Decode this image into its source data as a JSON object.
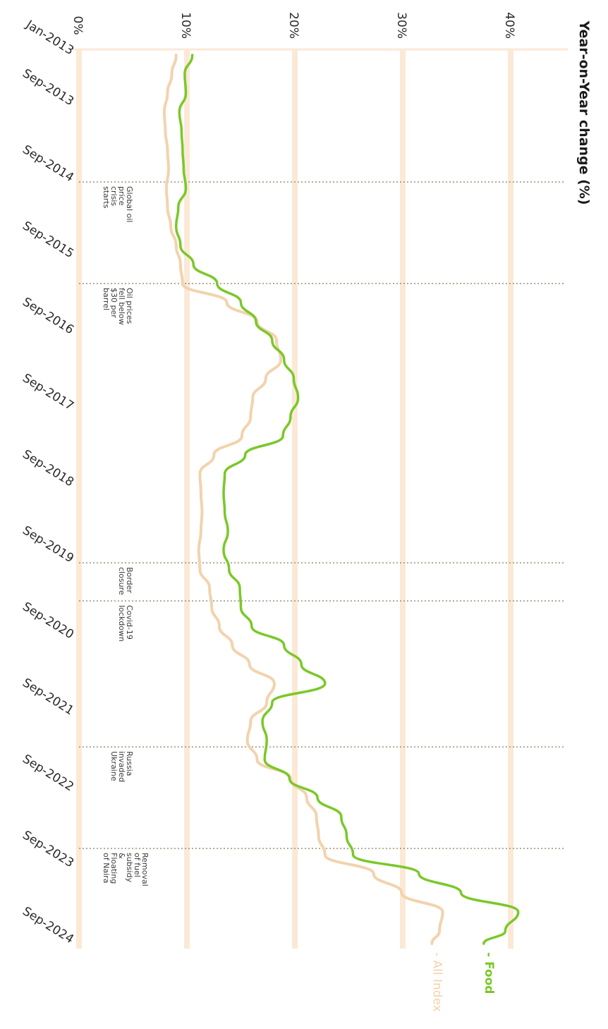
{
  "chart_data": {
    "type": "line",
    "title": "Year-on-Year change (%)",
    "ylabel": "Year-on-Year change (%)",
    "ylim": [
      0,
      42
    ],
    "y_ticks": [
      "0%",
      "10%",
      "20%",
      "30%",
      "40%"
    ],
    "x_ticks": [
      "Jan-2013",
      "Sep-2013",
      "Sep-2014",
      "Sep-2015",
      "Sep-2016",
      "Sep-2017",
      "Sep-2018",
      "Sep-2019",
      "Sep-2020",
      "Sep-2021",
      "Sep-2022",
      "Sep-2023",
      "Sep-2024"
    ],
    "colors": {
      "food": "#7ac828",
      "all": "#f2d3ad",
      "grid": "#fbe9d6",
      "event": "#8a7a5a"
    },
    "series": [
      {
        "name": "Food",
        "dates": [
          "2013-01",
          "2013-04",
          "2013-07",
          "2013-10",
          "2014-01",
          "2014-04",
          "2014-07",
          "2014-10",
          "2015-01",
          "2015-04",
          "2015-07",
          "2015-10",
          "2016-01",
          "2016-04",
          "2016-07",
          "2016-10",
          "2017-01",
          "2017-04",
          "2017-07",
          "2017-10",
          "2018-01",
          "2018-04",
          "2018-07",
          "2018-10",
          "2019-01",
          "2019-04",
          "2019-07",
          "2019-10",
          "2020-01",
          "2020-04",
          "2020-07",
          "2020-10",
          "2021-01",
          "2021-04",
          "2021-07",
          "2021-10",
          "2022-01",
          "2022-04",
          "2022-07",
          "2022-10",
          "2023-01",
          "2023-04",
          "2023-07",
          "2023-10",
          "2024-01",
          "2024-04",
          "2024-07",
          "2024-09"
        ],
        "values": [
          10.5,
          9.8,
          9.9,
          9.3,
          9.5,
          9.6,
          9.7,
          9.9,
          9.2,
          9.0,
          9.4,
          10.6,
          12.8,
          15.0,
          16.4,
          17.9,
          19.0,
          19.9,
          20.3,
          19.6,
          18.9,
          15.4,
          13.5,
          13.4,
          13.5,
          13.8,
          13.4,
          13.9,
          14.9,
          15.0,
          16.0,
          19.0,
          20.6,
          22.8,
          17.9,
          17.0,
          17.4,
          17.2,
          19.5,
          22.1,
          24.3,
          24.8,
          25.4,
          31.5,
          35.4,
          40.7,
          39.5,
          37.5
        ]
      },
      {
        "name": "All Index",
        "dates": [
          "2013-01",
          "2013-04",
          "2013-07",
          "2013-10",
          "2014-01",
          "2014-04",
          "2014-07",
          "2014-10",
          "2015-01",
          "2015-04",
          "2015-07",
          "2015-10",
          "2016-01",
          "2016-04",
          "2016-07",
          "2016-10",
          "2017-01",
          "2017-04",
          "2017-07",
          "2017-10",
          "2018-01",
          "2018-04",
          "2018-07",
          "2018-10",
          "2019-01",
          "2019-04",
          "2019-07",
          "2019-10",
          "2020-01",
          "2020-04",
          "2020-07",
          "2020-10",
          "2021-01",
          "2021-04",
          "2021-07",
          "2021-10",
          "2022-01",
          "2022-04",
          "2022-07",
          "2022-10",
          "2023-01",
          "2023-04",
          "2023-07",
          "2023-10",
          "2024-01",
          "2024-04",
          "2024-07",
          "2024-09"
        ],
        "values": [
          9.0,
          8.6,
          8.2,
          7.9,
          8.0,
          8.2,
          8.3,
          8.1,
          8.2,
          8.5,
          9.0,
          9.4,
          9.6,
          13.7,
          16.5,
          18.3,
          18.7,
          17.3,
          16.1,
          15.9,
          15.1,
          12.5,
          11.2,
          11.3,
          11.4,
          11.3,
          11.1,
          11.2,
          12.1,
          12.3,
          13.0,
          14.2,
          15.8,
          18.1,
          17.4,
          15.9,
          15.6,
          16.5,
          19.6,
          21.1,
          22.0,
          22.2,
          22.8,
          27.3,
          29.9,
          33.7,
          33.4,
          32.7
        ]
      }
    ],
    "events": [
      {
        "date": "2014-09",
        "label": [
          "Global oil",
          "price",
          "crisis",
          "starts"
        ]
      },
      {
        "date": "2016-01",
        "label": [
          "Oil prices",
          "fell below",
          "$30 per",
          "barrel"
        ]
      },
      {
        "date": "2019-09",
        "label": [
          "Border",
          "closure"
        ]
      },
      {
        "date": "2020-03",
        "label": [
          "Covid-19",
          "lockdown"
        ]
      },
      {
        "date": "2022-02",
        "label": [
          "Russia",
          "invaded",
          "Ukraine"
        ]
      },
      {
        "date": "2023-06",
        "label": [
          "Removal",
          "of fuel",
          "subsidy",
          "&",
          "Floating",
          "of Naira"
        ]
      }
    ],
    "legend": [
      "Food",
      "All Index"
    ],
    "legend_placement": "end-of-line",
    "grid": true
  }
}
